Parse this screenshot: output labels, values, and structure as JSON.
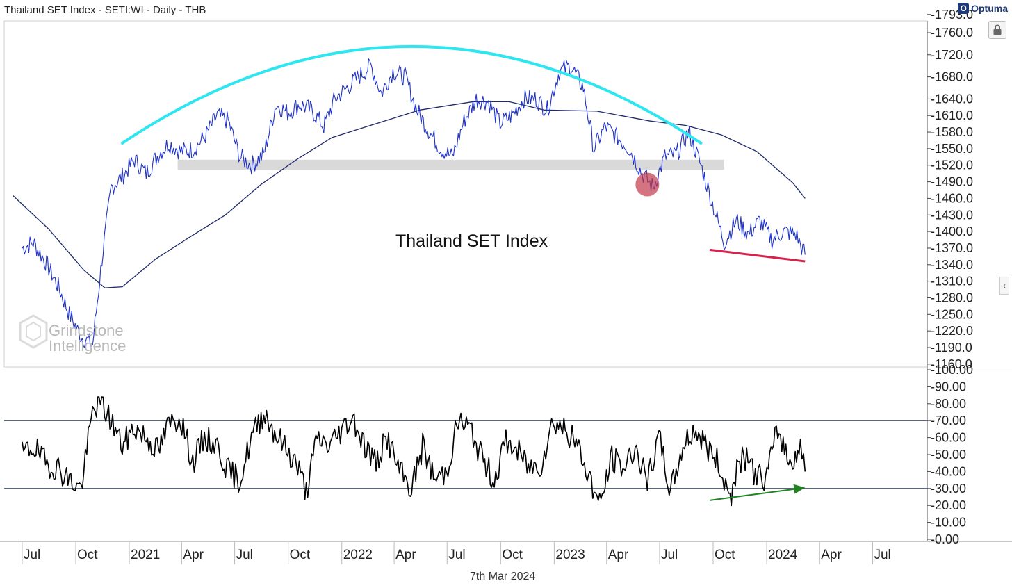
{
  "header": {
    "title": "Thailand SET Index - SETI:WI - Daily - THB",
    "brand": "Optuma"
  },
  "chart_title": "Thailand SET Index",
  "date_label": "7th Mar 2024",
  "watermark": {
    "line1": "Grindstone",
    "line2": "Intelligence"
  },
  "colors": {
    "price": "#1f33c9",
    "ma": "#1f2a6b",
    "arc": "#2ee6f0",
    "zone": "#d9d9d9",
    "marker": "#c0394a",
    "support": "#d6234c",
    "rsi": "#000000",
    "rsi_level": "#1f3350",
    "rsi_arrow": "#218221"
  },
  "chart_data": {
    "type": "line",
    "x_ticks": [
      "Jul",
      "Oct",
      "2021",
      "Apr",
      "Jul",
      "Oct",
      "2022",
      "Apr",
      "Jul",
      "Oct",
      "2023",
      "Apr",
      "Jul",
      "Oct",
      "2024",
      "Apr",
      "Jul"
    ],
    "x_dates": [
      "2020-07-01",
      "2020-10-01",
      "2021-01-01",
      "2021-04-01",
      "2021-07-01",
      "2021-10-01",
      "2022-01-01",
      "2022-04-01",
      "2022-07-01",
      "2022-10-01",
      "2023-01-01",
      "2023-04-01",
      "2023-07-01",
      "2023-10-01",
      "2024-01-01",
      "2024-04-01",
      "2024-07-01"
    ],
    "price_panel": {
      "y_ticks": [
        "1793.0",
        "1760.0",
        "1720.0",
        "1680.0",
        "1640.0",
        "1610.0",
        "1580.0",
        "1550.0",
        "1520.0",
        "1490.0",
        "1460.0",
        "1430.0",
        "1400.0",
        "1370.0",
        "1340.0",
        "1310.0",
        "1280.0",
        "1250.0",
        "1220.0",
        "1190.0",
        "1160.0"
      ],
      "series": [
        {
          "x": [
            "2020-07-01",
            "2020-07-20",
            "2020-08-10",
            "2020-09-01",
            "2020-09-20",
            "2020-10-10",
            "2020-10-30",
            "2020-11-15",
            "2020-12-01",
            "2020-12-20",
            "2021-01-10",
            "2021-01-30",
            "2021-02-20",
            "2021-03-10",
            "2021-03-30",
            "2021-04-20",
            "2021-05-10",
            "2021-06-01",
            "2021-06-20",
            "2021-07-10",
            "2021-07-30",
            "2021-08-20",
            "2021-09-10",
            "2021-09-30",
            "2021-10-20",
            "2021-11-10",
            "2021-12-01",
            "2021-12-20",
            "2022-01-10",
            "2022-01-30",
            "2022-02-20",
            "2022-03-10",
            "2022-03-30",
            "2022-04-20",
            "2022-05-10",
            "2022-06-01",
            "2022-06-20",
            "2022-07-10",
            "2022-07-30",
            "2022-08-20",
            "2022-09-10",
            "2022-09-30",
            "2022-10-20",
            "2022-11-10",
            "2022-12-01",
            "2022-12-20",
            "2023-01-10",
            "2023-01-30",
            "2023-02-20",
            "2023-03-10",
            "2023-03-30",
            "2023-04-20",
            "2023-05-10",
            "2023-06-01",
            "2023-06-20",
            "2023-07-10",
            "2023-07-30",
            "2023-08-20",
            "2023-09-10",
            "2023-09-30",
            "2023-10-20",
            "2023-11-10",
            "2023-12-01",
            "2023-12-20",
            "2024-01-10",
            "2024-01-30",
            "2024-02-20",
            "2024-03-07"
          ],
          "values": [
            1370,
            1380,
            1345,
            1300,
            1250,
            1210,
            1195,
            1350,
            1480,
            1500,
            1530,
            1505,
            1540,
            1560,
            1545,
            1548,
            1570,
            1610,
            1600,
            1535,
            1520,
            1540,
            1630,
            1615,
            1630,
            1620,
            1590,
            1640,
            1660,
            1680,
            1700,
            1650,
            1690,
            1680,
            1620,
            1580,
            1550,
            1535,
            1600,
            1640,
            1635,
            1595,
            1610,
            1640,
            1640,
            1620,
            1690,
            1700,
            1660,
            1550,
            1590,
            1570,
            1550,
            1505,
            1480,
            1535,
            1540,
            1580,
            1520,
            1450,
            1380,
            1420,
            1395,
            1420,
            1385,
            1400,
            1395,
            1358
          ]
        },
        {
          "x": [
            "2020-06-15",
            "2020-08-15",
            "2020-10-15",
            "2020-11-20",
            "2020-12-20",
            "2021-02-15",
            "2021-04-15",
            "2021-06-15",
            "2021-08-15",
            "2021-10-15",
            "2021-12-15",
            "2022-03-15",
            "2022-05-15",
            "2022-08-15",
            "2022-10-15",
            "2022-12-15",
            "2023-03-15",
            "2023-06-15",
            "2023-08-15",
            "2023-10-15",
            "2023-12-15",
            "2024-02-15",
            "2024-03-07"
          ],
          "values": [
            1465,
            1405,
            1330,
            1298,
            1300,
            1350,
            1390,
            1430,
            1485,
            1530,
            1570,
            1600,
            1620,
            1635,
            1635,
            1620,
            1618,
            1600,
            1592,
            1575,
            1545,
            1488,
            1460
          ]
        }
      ],
      "annotations": {
        "arc": {
          "x1": "2020-12-20",
          "x2": "2023-09-10",
          "y_ends": 1560,
          "y_peak": 1735
        },
        "zone": {
          "x1": "2021-03-25",
          "x2": "2023-10-20",
          "y_low": 1512,
          "y_high": 1530
        },
        "circle": {
          "x": "2023-06-10",
          "y": 1485
        },
        "support_line": {
          "x1": "2023-09-25",
          "y1": 1367,
          "x2": "2024-03-07",
          "y2": 1346
        }
      }
    },
    "rsi_panel": {
      "y_ticks": [
        "100.00",
        "90.00",
        "80.00",
        "70.00",
        "60.00",
        "50.00",
        "40.00",
        "30.00",
        "20.00",
        "10.00",
        "0.00"
      ],
      "levels": [
        70,
        30
      ],
      "series": [
        {
          "x": [
            "2020-07-01",
            "2020-07-20",
            "2020-08-10",
            "2020-09-01",
            "2020-09-20",
            "2020-10-10",
            "2020-10-30",
            "2020-11-10",
            "2020-12-01",
            "2020-12-20",
            "2021-01-10",
            "2021-01-30",
            "2021-02-20",
            "2021-03-10",
            "2021-03-30",
            "2021-04-20",
            "2021-05-10",
            "2021-06-01",
            "2021-06-20",
            "2021-07-10",
            "2021-07-30",
            "2021-08-20",
            "2021-09-10",
            "2021-09-30",
            "2021-10-15",
            "2021-11-01",
            "2021-11-20",
            "2021-12-10",
            "2022-01-01",
            "2022-01-20",
            "2022-02-10",
            "2022-03-01",
            "2022-03-20",
            "2022-04-10",
            "2022-05-01",
            "2022-05-20",
            "2022-06-10",
            "2022-06-30",
            "2022-07-20",
            "2022-08-10",
            "2022-08-30",
            "2022-09-20",
            "2022-10-10",
            "2022-10-30",
            "2022-11-20",
            "2022-12-10",
            "2022-12-30",
            "2023-01-20",
            "2023-02-10",
            "2023-03-01",
            "2023-03-20",
            "2023-04-10",
            "2023-05-01",
            "2023-05-20",
            "2023-06-10",
            "2023-06-30",
            "2023-07-20",
            "2023-08-10",
            "2023-08-30",
            "2023-09-20",
            "2023-10-10",
            "2023-10-30",
            "2023-11-20",
            "2023-12-10",
            "2023-12-30",
            "2024-01-20",
            "2024-02-10",
            "2024-02-28",
            "2024-03-07"
          ],
          "values": [
            50,
            55,
            45,
            42,
            35,
            30,
            75,
            82,
            70,
            55,
            66,
            60,
            52,
            68,
            72,
            45,
            60,
            55,
            40,
            35,
            60,
            75,
            62,
            52,
            45,
            28,
            60,
            55,
            65,
            72,
            55,
            45,
            60,
            40,
            30,
            55,
            35,
            40,
            70,
            65,
            48,
            35,
            58,
            52,
            42,
            45,
            70,
            65,
            55,
            38,
            20,
            48,
            42,
            55,
            33,
            60,
            28,
            55,
            65,
            55,
            45,
            25,
            50,
            40,
            35,
            65,
            45,
            55,
            40
          ]
        }
      ],
      "arrow": {
        "x1": "2023-09-25",
        "y1": 23,
        "x2": "2024-03-07",
        "y2": 30.5
      }
    }
  }
}
